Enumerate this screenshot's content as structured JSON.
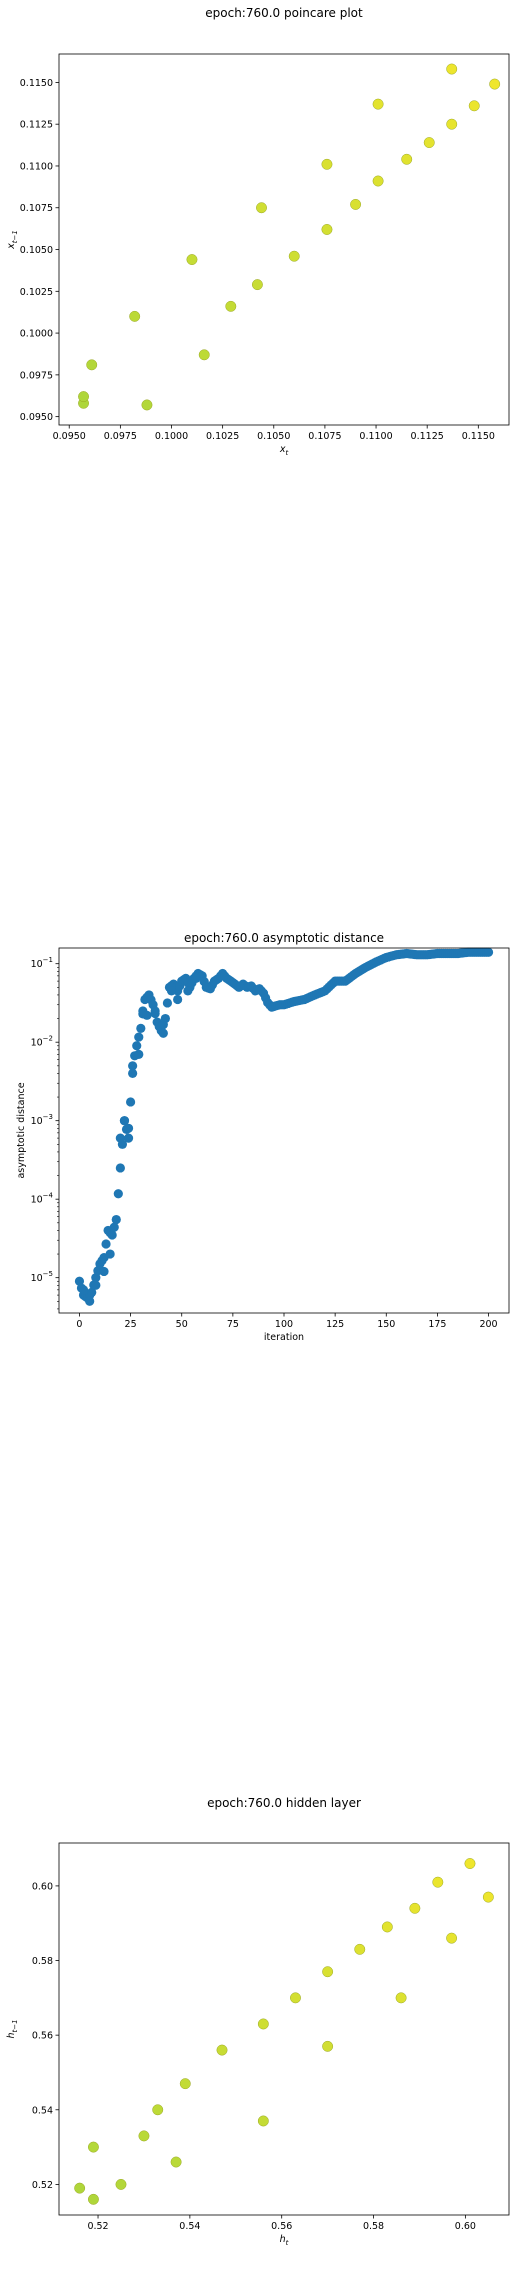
{
  "chart_data": [
    {
      "type": "scatter",
      "title": "epoch:760.0 poincare plot",
      "xlabel_main": "x",
      "xlabel_sub": "t",
      "ylabel_main": "x",
      "ylabel_sub": "t−1",
      "xlim": [
        0.0945,
        0.1165
      ],
      "ylim": [
        0.0945,
        0.1167
      ],
      "xticks": [
        0.095,
        0.0975,
        0.1,
        0.1025,
        0.105,
        0.1075,
        0.11,
        0.1125,
        0.115
      ],
      "xtick_labels": [
        "0.0950",
        "0.0975",
        "0.1000",
        "0.1025",
        "0.1050",
        "0.1075",
        "0.1100",
        "0.1125",
        "0.1150"
      ],
      "yticks": [
        0.095,
        0.0975,
        0.1,
        0.1025,
        0.105,
        0.1075,
        0.11,
        0.1125,
        0.115
      ],
      "ytick_labels": [
        "0.0950",
        "0.0975",
        "0.1000",
        "0.1025",
        "0.1050",
        "0.1075",
        "0.1100",
        "0.1125",
        "0.1150"
      ],
      "color_low": "#aed63a",
      "color_high": "#f0e62c",
      "x": [
        0.0957,
        0.0957,
        0.0961,
        0.0982,
        0.0988,
        0.101,
        0.1016,
        0.1029,
        0.1042,
        0.1044,
        0.106,
        0.1076,
        0.1076,
        0.109,
        0.1101,
        0.1101,
        0.1115,
        0.1126,
        0.1137,
        0.1137,
        0.1148,
        0.1158
      ],
      "y": [
        0.0958,
        0.0962,
        0.0981,
        0.101,
        0.0957,
        0.1044,
        0.0987,
        0.1016,
        0.1029,
        0.1075,
        0.1046,
        0.1062,
        0.1101,
        0.1077,
        0.1091,
        0.1137,
        0.1104,
        0.1114,
        0.1125,
        0.1158,
        0.1136,
        0.1149
      ]
    },
    {
      "type": "scatter",
      "title": "epoch:760.0 asymptotic distance",
      "xlabel": "iteration",
      "ylabel": "asymptotic distance",
      "xlim": [
        -10,
        210
      ],
      "ylog_lim": [
        -5.45,
        -0.8
      ],
      "xticks": [
        0,
        25,
        50,
        75,
        100,
        125,
        150,
        175,
        200
      ],
      "xtick_labels": [
        "0",
        "25",
        "50",
        "75",
        "100",
        "125",
        "150",
        "175",
        "200"
      ],
      "ytick_exponents": [
        -5,
        -4,
        -3,
        -2,
        -1
      ],
      "ytick_base": "10",
      "ytick_exps": [
        "−5",
        "−4",
        "−3",
        "−2",
        "−1"
      ],
      "color": "#1f77b4",
      "key_x": [
        0,
        2,
        4,
        6,
        8,
        10,
        12,
        14,
        16,
        18,
        20,
        22,
        24,
        26,
        28,
        30,
        32,
        34,
        36,
        38,
        40,
        42,
        44,
        46,
        48,
        50,
        52,
        54,
        56,
        58,
        60,
        62,
        64,
        66,
        68,
        70,
        72,
        74,
        76,
        78,
        80,
        82,
        84,
        86,
        88,
        90,
        92,
        94,
        96,
        98,
        100,
        105,
        110,
        115,
        120,
        125,
        130,
        135,
        140,
        145,
        150,
        155,
        160,
        165,
        170,
        175,
        180,
        185,
        190,
        195,
        200
      ],
      "key_y": [
        9e-06,
        6e-06,
        5.5e-06,
        6.5e-06,
        1e-05,
        1.5e-05,
        1.8e-05,
        4e-05,
        3.5e-05,
        5.5e-05,
        0.00025,
        0.001,
        0.0006,
        0.005,
        0.009,
        0.015,
        0.035,
        0.04,
        0.03,
        0.018,
        0.014,
        0.02,
        0.05,
        0.055,
        0.045,
        0.06,
        0.065,
        0.05,
        0.065,
        0.075,
        0.07,
        0.05,
        0.048,
        0.06,
        0.065,
        0.075,
        0.065,
        0.06,
        0.055,
        0.05,
        0.055,
        0.05,
        0.052,
        0.045,
        0.048,
        0.042,
        0.032,
        0.028,
        0.029,
        0.03,
        0.03,
        0.033,
        0.035,
        0.04,
        0.045,
        0.06,
        0.06,
        0.075,
        0.09,
        0.105,
        0.12,
        0.13,
        0.135,
        0.13,
        0.13,
        0.135,
        0.135,
        0.135,
        0.14,
        0.14,
        0.14
      ],
      "extra_x": [
        2,
        5,
        8,
        12,
        15,
        20,
        22,
        24,
        26,
        29,
        31,
        33,
        37,
        41,
        45,
        48,
        53,
        57
      ],
      "extra_y": [
        7e-06,
        5e-06,
        8e-06,
        1.2e-05,
        2e-05,
        0.0006,
        0.001,
        0.0008,
        0.004,
        0.007,
        0.025,
        0.022,
        0.025,
        0.013,
        0.045,
        0.035,
        0.045,
        0.065
      ]
    },
    {
      "type": "scatter",
      "title": "epoch:760.0 hidden layer",
      "xlabel_main": "h",
      "xlabel_sub": "t",
      "ylabel_main": "h",
      "ylabel_sub": "t−1",
      "xlim": [
        0.5115,
        0.6095
      ],
      "ylim": [
        0.5118,
        0.6115
      ],
      "xticks": [
        0.52,
        0.54,
        0.56,
        0.58,
        0.6
      ],
      "xtick_labels": [
        "0.52",
        "0.54",
        "0.56",
        "0.58",
        "0.60"
      ],
      "yticks": [
        0.52,
        0.54,
        0.56,
        0.58,
        0.6
      ],
      "ytick_labels": [
        "0.52",
        "0.54",
        "0.56",
        "0.58",
        "0.60"
      ],
      "color_low": "#aed63a",
      "color_high": "#f0e62c",
      "x": [
        0.516,
        0.519,
        0.519,
        0.525,
        0.53,
        0.533,
        0.537,
        0.539,
        0.547,
        0.556,
        0.556,
        0.563,
        0.57,
        0.57,
        0.577,
        0.583,
        0.586,
        0.589,
        0.594,
        0.597,
        0.601,
        0.605
      ],
      "y": [
        0.519,
        0.516,
        0.53,
        0.52,
        0.533,
        0.54,
        0.526,
        0.547,
        0.556,
        0.537,
        0.563,
        0.57,
        0.557,
        0.577,
        0.583,
        0.589,
        0.57,
        0.594,
        0.601,
        0.586,
        0.606,
        0.597
      ]
    }
  ]
}
